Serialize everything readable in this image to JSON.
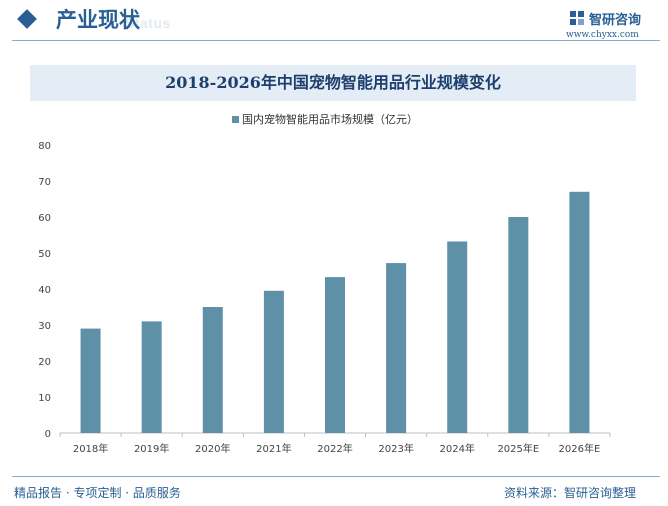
{
  "header": {
    "section_title": "产业现状",
    "section_subtitle": "Status",
    "brand_name": "智研咨询",
    "brand_url": "www.chyxx.com"
  },
  "colors": {
    "accent": "#2a5f95",
    "bar": "#5e90a8",
    "title_band": "#e4ecf6"
  },
  "chart_data": {
    "type": "bar",
    "title": "2018-2026年中国宠物智能用品行业规模变化",
    "categories": [
      "2018年",
      "2019年",
      "2020年",
      "2021年",
      "2022年",
      "2023年",
      "2024年",
      "2025年E",
      "2026年E"
    ],
    "series": [
      {
        "name": "国内宠物智能用品市场规模（亿元）",
        "values": [
          29,
          31,
          35,
          39.5,
          43.3,
          47.2,
          53.2,
          60,
          67
        ]
      }
    ],
    "yticks": [
      0,
      10,
      20,
      30,
      40,
      50,
      60,
      70,
      80
    ],
    "ylim": [
      0,
      80
    ],
    "xlabel": "",
    "ylabel": "",
    "grid": false,
    "legend_position": "top-center"
  },
  "footer": {
    "left_text": "精品报告 · 专项定制 · 品质服务",
    "source_text": "资料来源：智研咨询整理"
  }
}
